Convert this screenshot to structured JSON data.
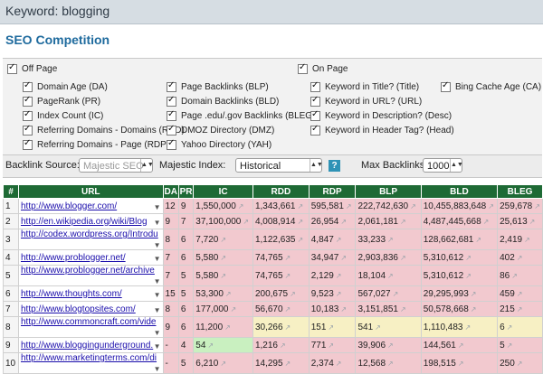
{
  "header": {
    "keyword_label": "Keyword: blogging"
  },
  "title": "SEO Competition",
  "options": {
    "off_page": {
      "label": "Off Page",
      "checked": true
    },
    "on_page": {
      "label": "On Page",
      "checked": true
    },
    "col1": [
      "Domain Age (DA)",
      "PageRank (PR)",
      "Index Count (IC)",
      "Referring Domains - Domains (RDD)",
      "Referring Domains - Page (RDP)"
    ],
    "col2": [
      "Page Backlinks (BLP)",
      "Domain Backlinks (BLD)",
      "Page .edu/.gov Backlinks (BLEG)",
      "DMOZ Directory (DMZ)",
      "Yahoo Directory (YAH)"
    ],
    "col3": [
      "Keyword in Title? (Title)",
      "Keyword in URL? (URL)",
      "Keyword in Description? (Desc)",
      "Keyword in Header Tag? (Head)"
    ],
    "col4": [
      "Bing Cache Age (CA)"
    ]
  },
  "controls": {
    "backlink_source_label": "Backlink Source:",
    "backlink_source_value": "Majestic SEO",
    "majestic_index_label": "Majestic Index:",
    "majestic_index_value": "Historical",
    "help_icon": "?",
    "max_backlinks_label": "Max Backlinks:",
    "max_backlinks_value": "1000"
  },
  "table": {
    "headers": [
      "#",
      "URL",
      "DA",
      "PR",
      "IC",
      "RDD",
      "RDP",
      "BLP",
      "BLD",
      "BLEG"
    ],
    "rows": [
      [
        "1",
        "http://www.blogger.com/",
        "12",
        "9",
        "1,550,000",
        "1,343,661",
        "595,581",
        "222,742,630",
        "10,455,883,648",
        "259,678"
      ],
      [
        "2",
        "http://en.wikipedia.org/wiki/Blog",
        "9",
        "7",
        "37,100,000",
        "4,008,914",
        "26,954",
        "2,061,181",
        "4,487,445,668",
        "25,613"
      ],
      [
        "3",
        "http://codex.wordpress.org/Introdu",
        "8",
        "6",
        "7,720",
        "1,122,635",
        "4,847",
        "33,233",
        "128,662,681",
        "2,419"
      ],
      [
        "4",
        "http://www.problogger.net/",
        "7",
        "6",
        "5,580",
        "74,765",
        "34,947",
        "2,903,836",
        "5,310,612",
        "402"
      ],
      [
        "5",
        "http://www.problogger.net/archive",
        "7",
        "5",
        "5,580",
        "74,765",
        "2,129",
        "18,104",
        "5,310,612",
        "86"
      ],
      [
        "6",
        "http://www.thoughts.com/",
        "15",
        "5",
        "53,300",
        "200,675",
        "9,523",
        "567,027",
        "29,295,993",
        "459"
      ],
      [
        "7",
        "http://www.blogtopsites.com/",
        "8",
        "6",
        "177,000",
        "56,670",
        "10,183",
        "3,151,851",
        "50,578,668",
        "215"
      ],
      [
        "8",
        "http://www.commoncraft.com/vide",
        "9",
        "6",
        "11,200",
        "30,266",
        "151",
        "541",
        "1,110,483",
        "6"
      ],
      [
        "9",
        "http://www.bloggingunderground.",
        "-",
        "4",
        "54",
        "1,216",
        "771",
        "39,906",
        "144,561",
        "5"
      ],
      [
        "10",
        "http://www.marketingterms.com/di",
        "-",
        "5",
        "6,210",
        "14,295",
        "2,374",
        "12,568",
        "198,515",
        "250"
      ]
    ]
  }
}
